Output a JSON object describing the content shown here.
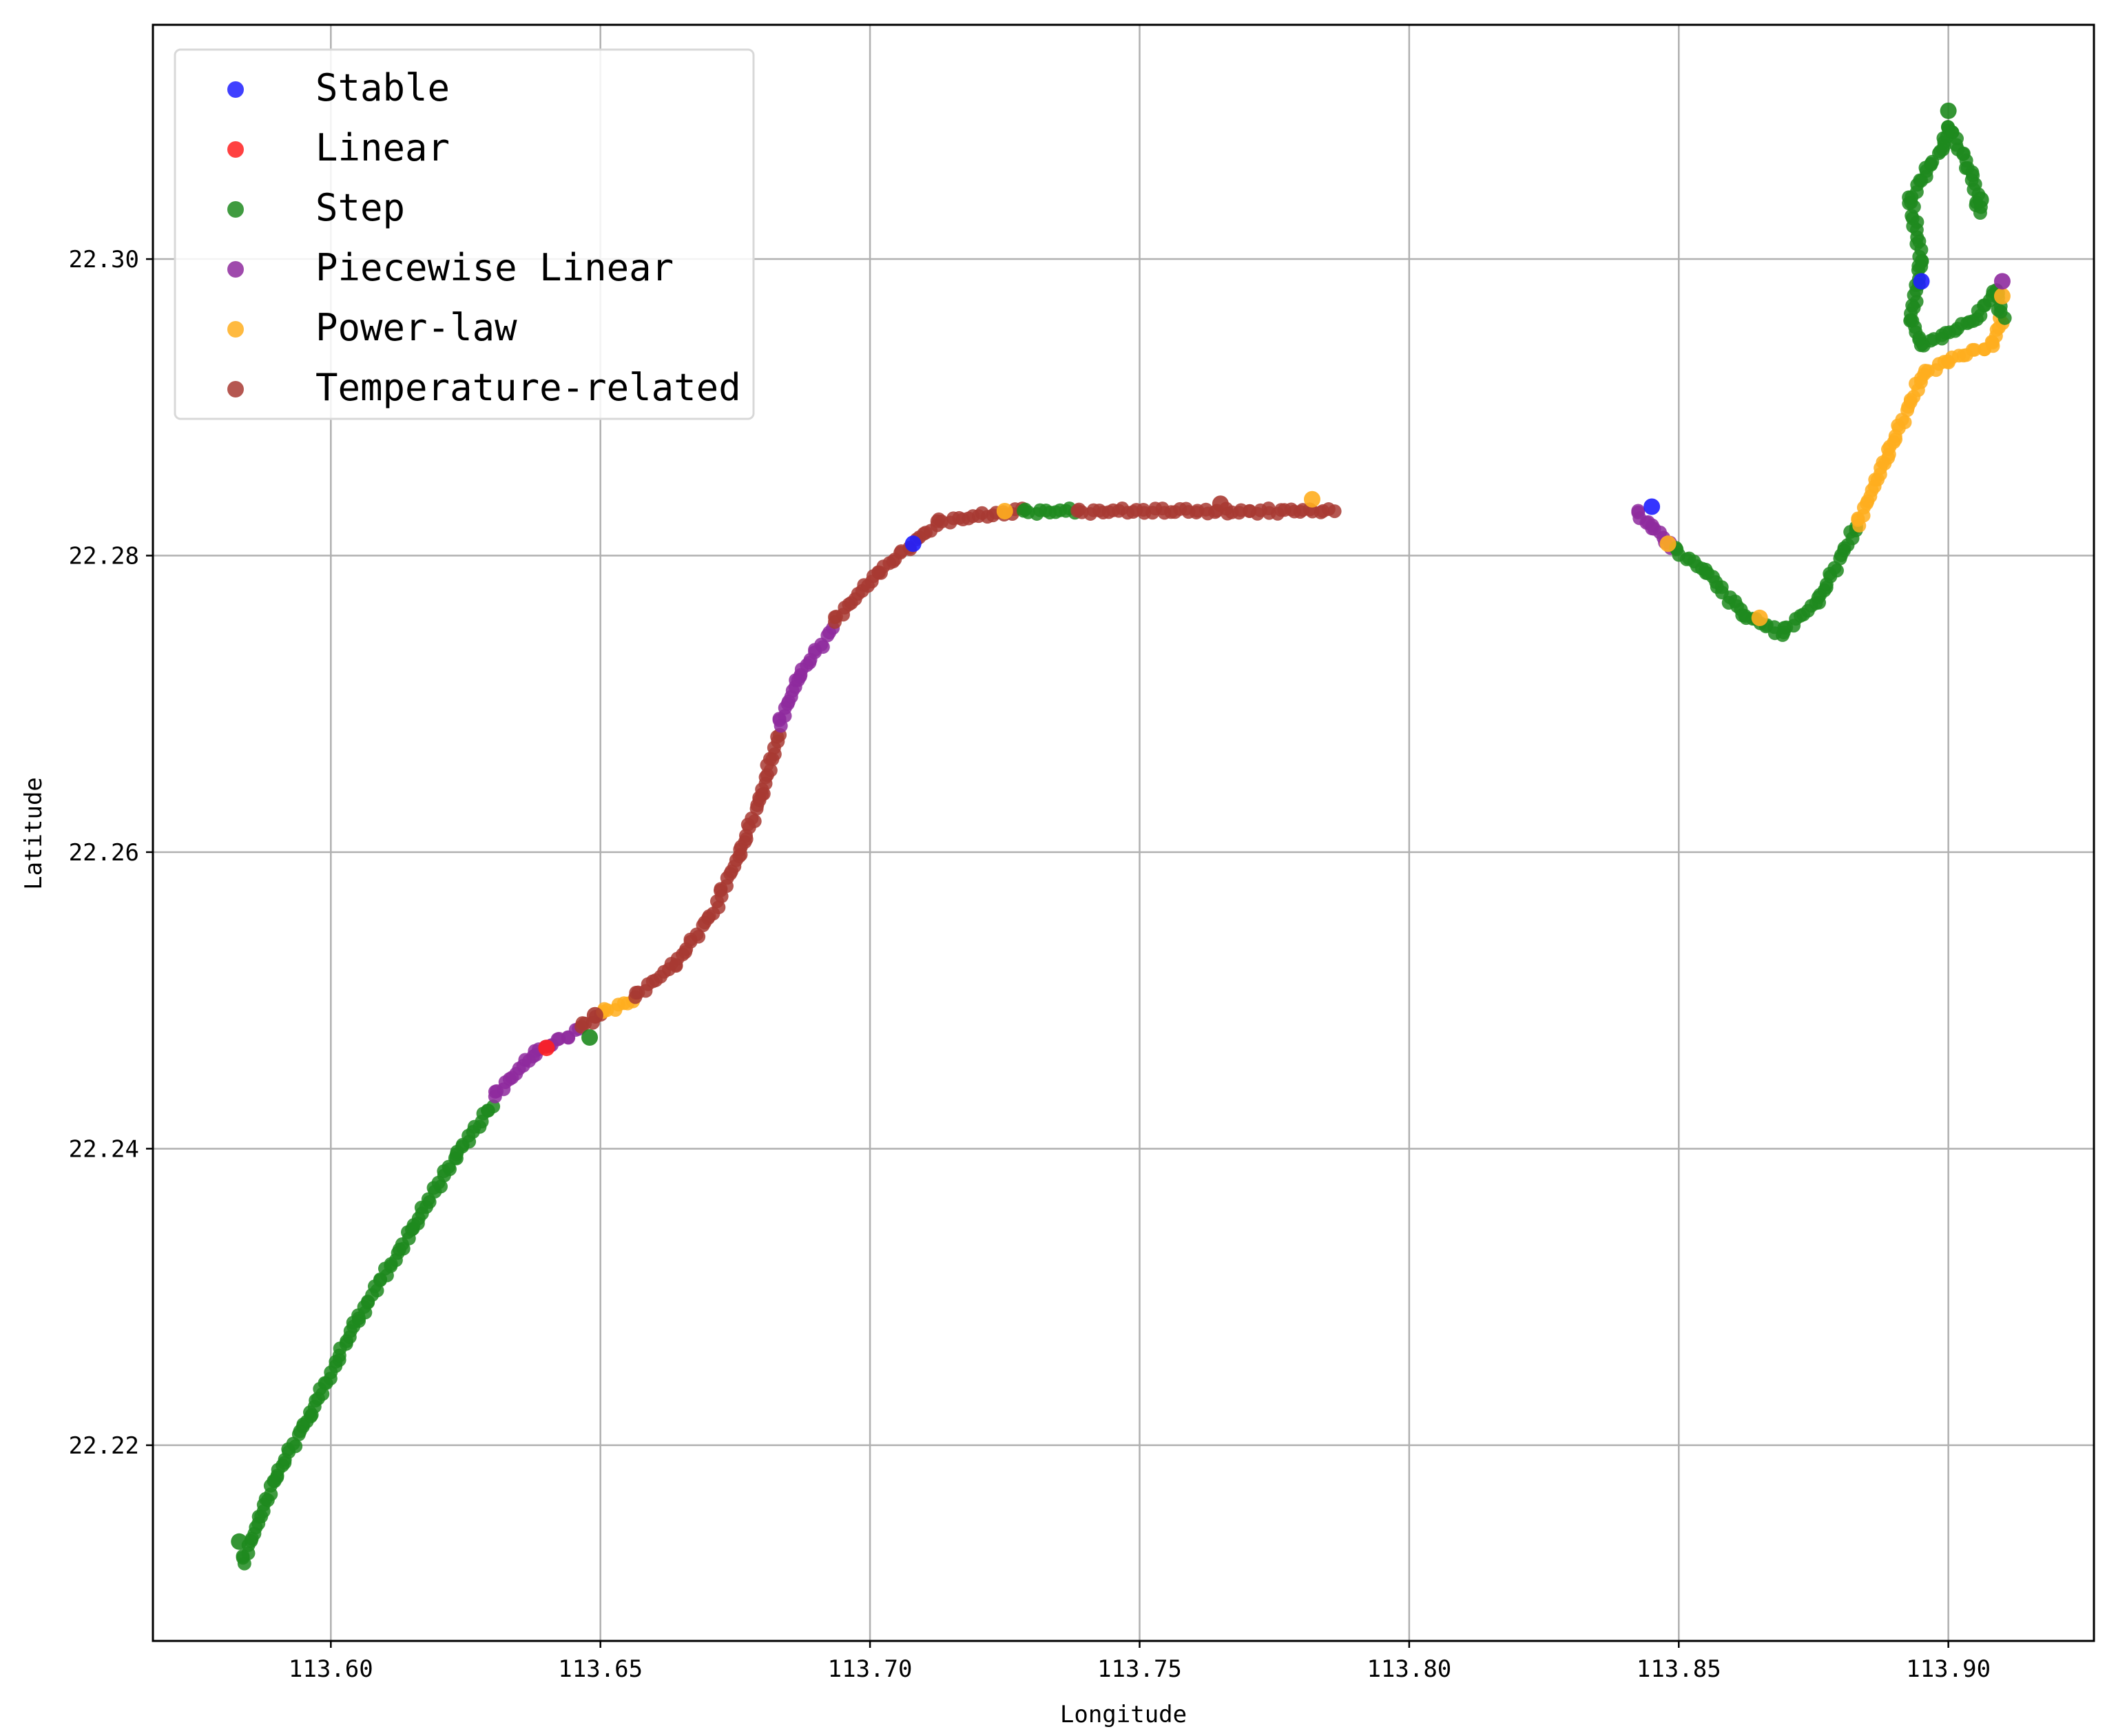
{
  "chart_data": {
    "type": "scatter",
    "title": "",
    "xlabel": "Longitude",
    "ylabel": "Latitude",
    "xlim": [
      113.567,
      113.927
    ],
    "ylim": [
      22.2068,
      22.3158
    ],
    "x_ticks": [
      113.6,
      113.65,
      113.7,
      113.75,
      113.8,
      113.85,
      113.9
    ],
    "x_tick_labels": [
      "113.60",
      "113.65",
      "113.70",
      "113.75",
      "113.80",
      "113.85",
      "113.90"
    ],
    "y_ticks": [
      22.22,
      22.24,
      22.26,
      22.28,
      22.3
    ],
    "y_tick_labels": [
      "22.22",
      "22.24",
      "22.26",
      "22.28",
      "22.30"
    ],
    "grid": true,
    "legend_position": "upper-left",
    "series": [
      {
        "name": "Stable",
        "color": "#1f1fff"
      },
      {
        "name": "Linear",
        "color": "#ff2020"
      },
      {
        "name": "Step",
        "color": "#1e8a1e"
      },
      {
        "name": "Piecewise Linear",
        "color": "#8e2a9e"
      },
      {
        "name": "Power-law",
        "color": "#ffae1f"
      },
      {
        "name": "Temperature-related",
        "color": "#a83a32"
      }
    ],
    "segments": [
      {
        "series": "Step",
        "points": [
          [
            113.5835,
            22.212
          ],
          [
            113.59,
            22.218
          ],
          [
            113.596,
            22.222
          ],
          [
            113.605,
            22.2285
          ],
          [
            113.615,
            22.2345
          ],
          [
            113.623,
            22.2395
          ],
          [
            113.63,
            22.243
          ]
        ]
      },
      {
        "series": "Piecewise Linear",
        "points": [
          [
            113.63,
            22.2435
          ],
          [
            113.638,
            22.2465
          ],
          [
            113.646,
            22.248
          ]
        ]
      },
      {
        "series": "Temperature-related",
        "points": [
          [
            113.646,
            22.2482
          ],
          [
            113.65,
            22.249
          ]
        ]
      },
      {
        "series": "Power-law",
        "points": [
          [
            113.65,
            22.2492
          ],
          [
            113.656,
            22.25
          ]
        ]
      },
      {
        "series": "Temperature-related",
        "points": [
          [
            113.656,
            22.2502
          ],
          [
            113.664,
            22.2525
          ],
          [
            113.672,
            22.2565
          ]
        ]
      },
      {
        "series": "Temperature-related",
        "points": [
          [
            113.672,
            22.257
          ],
          [
            113.676,
            22.26
          ],
          [
            113.68,
            22.264
          ],
          [
            113.683,
            22.268
          ]
        ]
      },
      {
        "series": "Piecewise Linear",
        "points": [
          [
            113.683,
            22.2685
          ],
          [
            113.687,
            22.272
          ],
          [
            113.693,
            22.275
          ]
        ]
      },
      {
        "series": "Temperature-related",
        "points": [
          [
            113.693,
            22.2755
          ],
          [
            113.702,
            22.279
          ],
          [
            113.712,
            22.282
          ]
        ]
      },
      {
        "series": "Temperature-related",
        "points": [
          [
            113.712,
            22.2823
          ],
          [
            113.728,
            22.283
          ]
        ]
      },
      {
        "series": "Step",
        "points": [
          [
            113.728,
            22.283
          ],
          [
            113.738,
            22.283
          ]
        ]
      },
      {
        "series": "Temperature-related",
        "points": [
          [
            113.738,
            22.283
          ],
          [
            113.786,
            22.283
          ]
        ]
      },
      {
        "series": "Piecewise Linear",
        "points": [
          [
            113.842,
            22.283
          ],
          [
            113.845,
            22.282
          ],
          [
            113.849,
            22.2805
          ]
        ]
      },
      {
        "series": "Step",
        "points": [
          [
            113.849,
            22.2805
          ],
          [
            113.855,
            22.279
          ],
          [
            113.862,
            22.276
          ],
          [
            113.869,
            22.2748
          ]
        ]
      },
      {
        "series": "Step",
        "points": [
          [
            113.869,
            22.2748
          ],
          [
            113.876,
            22.277
          ],
          [
            113.883,
            22.282
          ]
        ]
      },
      {
        "series": "Power-law",
        "points": [
          [
            113.883,
            22.282
          ],
          [
            113.889,
            22.287
          ],
          [
            113.895,
            22.292
          ]
        ]
      },
      {
        "series": "Power-law",
        "points": [
          [
            113.895,
            22.2922
          ],
          [
            113.9,
            22.2932
          ],
          [
            113.908,
            22.2942
          ],
          [
            113.91,
            22.296
          ]
        ]
      },
      {
        "series": "Step",
        "points": [
          [
            113.91,
            22.296
          ],
          [
            113.909,
            22.298
          ],
          [
            113.905,
            22.296
          ],
          [
            113.9,
            22.295
          ],
          [
            113.895,
            22.2942
          ],
          [
            113.893,
            22.296
          ],
          [
            113.895,
            22.3
          ],
          [
            113.893,
            22.304
          ],
          [
            113.896,
            22.306
          ],
          [
            113.899,
            22.3075
          ],
          [
            113.9,
            22.309
          ],
          [
            113.904,
            22.306
          ],
          [
            113.906,
            22.303
          ]
        ]
      }
    ],
    "markers": [
      {
        "series": "Stable",
        "x": 113.845,
        "y": 22.2833
      },
      {
        "series": "Stable",
        "x": 113.895,
        "y": 22.2985
      },
      {
        "series": "Stable",
        "x": 113.708,
        "y": 22.2808
      },
      {
        "series": "Linear",
        "x": 113.64,
        "y": 22.2468
      },
      {
        "series": "Power-law",
        "x": 113.725,
        "y": 22.283
      },
      {
        "series": "Power-law",
        "x": 113.782,
        "y": 22.2838
      },
      {
        "series": "Power-law",
        "x": 113.848,
        "y": 22.2808
      },
      {
        "series": "Power-law",
        "x": 113.865,
        "y": 22.2758
      },
      {
        "series": "Power-law",
        "x": 113.91,
        "y": 22.2975
      },
      {
        "series": "Piecewise Linear",
        "x": 113.91,
        "y": 22.2985
      },
      {
        "series": "Temperature-related",
        "x": 113.649,
        "y": 22.249
      },
      {
        "series": "Temperature-related",
        "x": 113.765,
        "y": 22.2835
      },
      {
        "series": "Step",
        "x": 113.648,
        "y": 22.2475
      },
      {
        "series": "Step",
        "x": 113.583,
        "y": 22.2135
      },
      {
        "series": "Step",
        "x": 113.9,
        "y": 22.31
      },
      {
        "series": "Step",
        "x": 113.906,
        "y": 22.304
      }
    ]
  }
}
